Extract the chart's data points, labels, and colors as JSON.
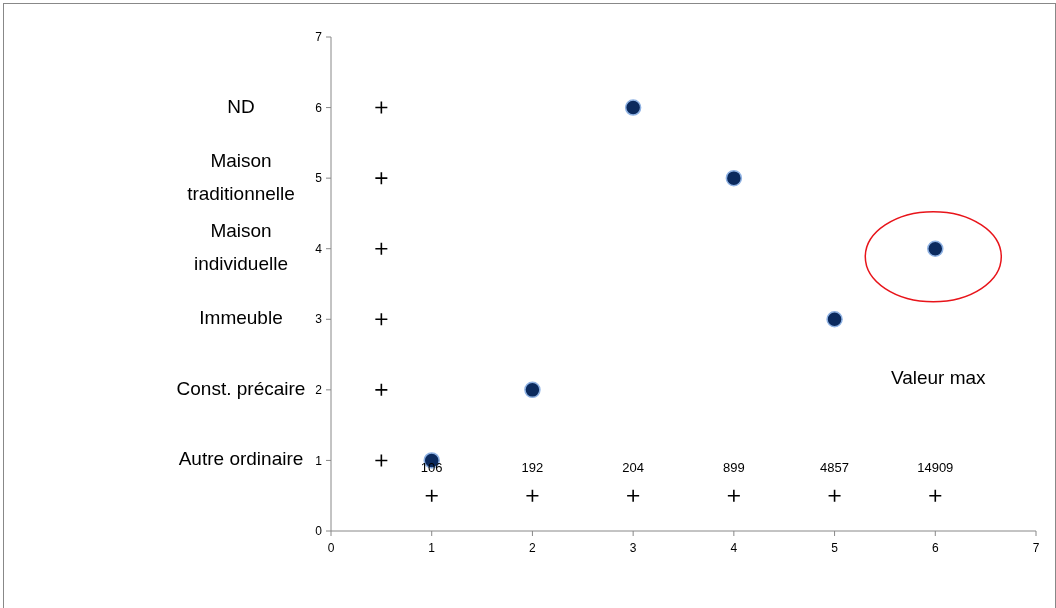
{
  "chart_data": {
    "type": "scatter",
    "xlim": [
      0,
      7
    ],
    "ylim": [
      0,
      7
    ],
    "xticks": [
      0,
      1,
      2,
      3,
      4,
      5,
      6,
      7
    ],
    "yticks": [
      0,
      1,
      2,
      3,
      4,
      5,
      6,
      7
    ],
    "grid": false,
    "series": [
      {
        "marker": "circle",
        "color": "#0b2a5e",
        "x": [
          1,
          2,
          3,
          4,
          5,
          6
        ],
        "values": [
          1,
          2,
          6,
          5,
          3,
          4
        ]
      },
      {
        "marker": "cross",
        "color": "#000000",
        "x": [
          0.5,
          0.5,
          0.5,
          0.5,
          0.5,
          0.5
        ],
        "values": [
          1,
          2,
          3,
          4,
          5,
          6
        ]
      },
      {
        "marker": "cross",
        "color": "#000000",
        "x": [
          1,
          2,
          3,
          4,
          5,
          6
        ],
        "values": [
          0.5,
          0.5,
          0.5,
          0.5,
          0.5,
          0.5
        ]
      }
    ],
    "annotations": [
      "Autre ordinaire",
      "Const. précaire",
      "Immeuble",
      "Maison individuelle",
      "Maison traditionnelle",
      "ND",
      {
        "text": "106",
        "x": 1,
        "y": 0.5
      },
      {
        "text": "192",
        "x": 2,
        "y": 0.5
      },
      {
        "text": "204",
        "x": 3,
        "y": 0.5
      },
      {
        "text": "899",
        "x": 4,
        "y": 0.5
      },
      {
        "text": "4857",
        "x": 5,
        "y": 0.5
      },
      {
        "text": "14909",
        "x": 6,
        "y": 0.5
      },
      "Valeur max"
    ]
  }
}
